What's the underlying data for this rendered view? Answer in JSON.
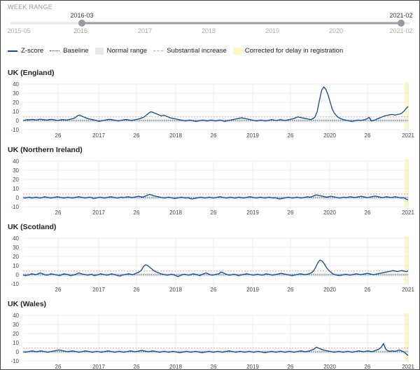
{
  "week_range": {
    "label": "WEEK RANGE",
    "min_label": "2015-05",
    "max_label": "2021-02",
    "start_value": "2016-03",
    "end_value": "2021-02",
    "start_tick": "2016"
  },
  "legend": {
    "zscore": "Z-score",
    "baseline": "Baseline",
    "normal_range": "Normal range",
    "substantial_increase": "Substantial increase",
    "corrected": "Corrected for delay in registration"
  },
  "colors": {
    "zscore": "#0c4a8c",
    "normal_range": "#e4e9ee",
    "substantial": "#e89a9a",
    "corrected": "#fff6c6",
    "slider": "#9a9aa0"
  },
  "chart_data": [
    {
      "type": "line",
      "title": "UK (England)",
      "ylim": [
        -10,
        40
      ],
      "yticks": [
        -10,
        0,
        10,
        20,
        30,
        40
      ],
      "x_tick_labels": [
        "26",
        "2017",
        "26",
        "2018",
        "26",
        "2019",
        "26",
        "2020",
        "26",
        "2021"
      ],
      "baseline": 0,
      "normal_range": [
        -2,
        2
      ],
      "substantial_increase": 4,
      "series": [
        {
          "values": [
            0,
            0.5,
            1,
            0.8,
            1.2,
            1,
            0.5,
            1,
            1.5,
            1,
            0.8,
            0.5,
            1,
            1.2,
            1,
            0.5,
            0,
            0.5,
            1,
            0.8,
            0.5,
            1,
            1.5,
            2,
            3,
            5,
            6,
            5,
            4,
            3,
            2,
            1.5,
            1,
            0.5,
            0,
            -1,
            -0.5,
            0,
            0.5,
            1,
            1.2,
            1,
            0.5,
            0,
            -0.5,
            0,
            0.5,
            1,
            1,
            0.5,
            0,
            0.5,
            1,
            1.5,
            2,
            3,
            4,
            6,
            8,
            9.5,
            9,
            8,
            7,
            6,
            5,
            6,
            5,
            4,
            3,
            2.5,
            2,
            1.5,
            1,
            0.5,
            0,
            -0.5,
            0,
            0.5,
            0,
            -0.5,
            -1,
            -0.5,
            0,
            0.5,
            0,
            -0.5,
            0,
            0.5,
            0,
            -0.5,
            0,
            0.5,
            0,
            -1,
            -0.5,
            0,
            0.5,
            1,
            1.5,
            2,
            2.5,
            3,
            2.5,
            2,
            1.5,
            1,
            0.5,
            0,
            -0.5,
            0,
            0.5,
            0,
            -0.5,
            0,
            0.5,
            1,
            0.5,
            0,
            0.5,
            1,
            0.5,
            0,
            0.5,
            1,
            1.5,
            2,
            3,
            4,
            3.5,
            3,
            2.5,
            2,
            1.5,
            1,
            2,
            4,
            10,
            22,
            33,
            37,
            34,
            28,
            20,
            12,
            8,
            5,
            3,
            2,
            1,
            0.5,
            0,
            -0.5,
            -1,
            -0.5,
            0,
            0.5,
            0,
            0.5,
            1,
            2,
            3.5,
            -0.5,
            0,
            1,
            2,
            3,
            4,
            5,
            5.5,
            6,
            6.5,
            6.5,
            6,
            6.5,
            7,
            8,
            10,
            13,
            15.5
          ]
        }
      ]
    },
    {
      "type": "line",
      "title": "UK (Northern Ireland)",
      "ylim": [
        -10,
        40
      ],
      "yticks": [
        -10,
        0,
        10,
        20,
        30,
        40
      ],
      "x_tick_labels": [
        "26",
        "2017",
        "26",
        "2018",
        "26",
        "2019",
        "26",
        "2020",
        "26",
        "2021"
      ],
      "baseline": 0,
      "normal_range": [
        -2,
        2
      ],
      "substantial_increase": 4,
      "series": [
        {
          "values": [
            0,
            -0.5,
            0,
            0.5,
            -0.5,
            0,
            0.5,
            0,
            -0.5,
            0,
            1,
            0.5,
            0,
            -0.5,
            0,
            0.5,
            1,
            0.5,
            0,
            -0.5,
            0,
            0.5,
            0,
            -0.5,
            0,
            0.5,
            1,
            0.5,
            0,
            -0.5,
            0,
            0.5,
            0,
            -1,
            -0.5,
            0,
            0.5,
            0,
            -0.5,
            0,
            0.5,
            1,
            0.5,
            0,
            -0.5,
            0,
            0.5,
            0,
            0.5,
            1,
            0.5,
            0,
            0.5,
            1,
            1.5,
            1,
            0.5,
            1.5,
            2.5,
            3.5,
            3,
            2,
            1.5,
            1,
            0.5,
            0,
            -0.5,
            0,
            0.5,
            0,
            -0.5,
            -1,
            -0.5,
            0,
            0.5,
            0,
            -0.5,
            0,
            -1,
            -1.5,
            -1,
            -0.5,
            0,
            0.5,
            0,
            -0.5,
            0,
            0.5,
            0,
            -0.5,
            0,
            0.5,
            1,
            0.5,
            0,
            -0.5,
            0,
            0.5,
            0,
            -0.5,
            0,
            0.5,
            0,
            -0.5,
            0,
            0.5,
            1,
            0.5,
            0,
            -0.5,
            0,
            0.5,
            0,
            -0.5,
            0,
            0.5,
            0,
            -0.5,
            0,
            -1,
            -1.5,
            -1,
            -0.5,
            0,
            0.5,
            0,
            -0.5,
            0,
            0.5,
            0,
            -0.5,
            0,
            0.5,
            1,
            0.5,
            1,
            2,
            3,
            2.5,
            2,
            1.5,
            1,
            0.5,
            1,
            1.5,
            1,
            0.5,
            0,
            -0.5,
            0,
            0.5,
            0,
            0.5,
            1,
            0.5,
            0,
            0.5,
            1,
            1.5,
            1,
            0.5,
            0,
            0.5,
            1,
            1.5,
            1.5,
            1,
            0.5,
            0,
            0.5,
            1,
            0.5,
            0,
            0.5,
            1,
            0.5,
            0,
            -0.5,
            0,
            -1.5,
            -2.5
          ]
        }
      ]
    },
    {
      "type": "line",
      "title": "UK (Scotland)",
      "ylim": [
        -10,
        40
      ],
      "yticks": [
        -10,
        0,
        10,
        20,
        30,
        40
      ],
      "x_tick_labels": [
        "26",
        "2017",
        "26",
        "2018",
        "26",
        "2019",
        "26",
        "2020",
        "26",
        "2021"
      ],
      "baseline": 0,
      "normal_range": [
        -2,
        2
      ],
      "substantial_increase": 4,
      "series": [
        {
          "values": [
            0,
            -1,
            -0.5,
            0,
            1,
            0.5,
            0,
            1,
            2,
            1,
            0,
            -0.5,
            0,
            1,
            0.5,
            0,
            -0.5,
            -1,
            0,
            1,
            0.5,
            0,
            -1,
            -0.5,
            0,
            1,
            2,
            1,
            0.5,
            0,
            -0.5,
            0,
            0.5,
            -1,
            -0.5,
            0,
            1,
            0.5,
            0,
            -0.5,
            0,
            1,
            0.5,
            0,
            -1,
            -1.5,
            -0.5,
            0,
            0.5,
            1,
            0.5,
            0,
            1,
            2,
            3,
            5,
            9,
            11,
            10,
            8,
            6,
            4,
            3,
            2,
            1,
            0.5,
            0,
            -0.5,
            0,
            0.5,
            0,
            -1,
            -2,
            -1,
            0,
            0.5,
            0,
            -0.5,
            0,
            1,
            0.5,
            0,
            -1,
            0,
            1,
            2,
            1,
            0,
            -0.5,
            0,
            0.5,
            1,
            3,
            2,
            1,
            0,
            -0.5,
            0,
            0.5,
            0,
            -1,
            -0.5,
            0,
            0.5,
            1,
            0.5,
            0,
            -0.5,
            0,
            0.5,
            0,
            -0.5,
            0,
            1,
            0.5,
            0,
            -0.5,
            0,
            0.5,
            1,
            1.5,
            1,
            0.5,
            0,
            -0.5,
            -1,
            -0.5,
            0,
            0.5,
            1,
            0.5,
            0,
            0.5,
            1,
            2,
            4,
            8,
            13,
            16,
            15,
            12,
            8,
            5,
            3,
            1,
            0,
            -0.5,
            -1,
            -0.5,
            0,
            0.5,
            0,
            -0.5,
            0,
            0.5,
            1,
            0.5,
            0,
            0.5,
            1,
            1.5,
            1,
            0.5,
            0,
            0.5,
            1,
            1.5,
            2,
            2.5,
            3,
            3.5,
            4,
            4.5,
            4,
            3.5,
            4,
            4.5,
            4,
            3.5,
            4
          ]
        }
      ]
    },
    {
      "type": "line",
      "title": "UK (Wales)",
      "ylim": [
        -10,
        40
      ],
      "yticks": [
        -10,
        0,
        10,
        20,
        30,
        40
      ],
      "x_tick_labels": [
        "26",
        "2017",
        "26",
        "2018",
        "26",
        "2019",
        "26",
        "2020",
        "26",
        "2021"
      ],
      "baseline": 0,
      "normal_range": [
        -2,
        2
      ],
      "substantial_increase": 4,
      "series": [
        {
          "values": [
            0,
            -0.5,
            0,
            0.5,
            1,
            0.5,
            0,
            0.5,
            1,
            0.5,
            0,
            -0.5,
            0,
            0.5,
            1,
            1.5,
            2,
            1.5,
            1,
            0.5,
            0,
            0.5,
            1,
            0.5,
            0,
            -0.5,
            0,
            0.5,
            1,
            0.5,
            0,
            -0.5,
            0,
            0.5,
            0,
            -0.5,
            0,
            0.5,
            1,
            0.5,
            0,
            -0.5,
            0,
            0.5,
            0,
            -0.5,
            0,
            0.5,
            1,
            0.5,
            0,
            0.5,
            1,
            1.5,
            1,
            0.5,
            0,
            0.5,
            1,
            0.5,
            0,
            -0.5,
            0,
            0.5,
            0,
            -0.5,
            0,
            0.5,
            0,
            -0.5,
            -1,
            -0.5,
            0,
            0.5,
            0,
            -0.5,
            0,
            0.5,
            0,
            -0.5,
            -1,
            -0.5,
            0,
            0.5,
            0,
            -0.5,
            0,
            0.5,
            0,
            -0.5,
            0,
            0.5,
            1,
            0.5,
            0,
            -0.5,
            0,
            0.5,
            0,
            -0.5,
            0,
            0.5,
            0,
            -0.5,
            0,
            0.5,
            0,
            -0.5,
            -1,
            -0.5,
            0,
            0.5,
            0,
            -0.5,
            0,
            0.5,
            0,
            -0.5,
            0,
            0.5,
            0,
            -0.5,
            0,
            0.5,
            1,
            0.5,
            0,
            0.5,
            1,
            2,
            3,
            5,
            4,
            3,
            2,
            1.5,
            1,
            0.5,
            0,
            -0.5,
            0,
            0.5,
            0,
            -0.5,
            0,
            0.5,
            0,
            -0.5,
            0,
            0.5,
            1,
            0.5,
            0,
            0.5,
            1,
            0.5,
            0,
            1,
            2,
            3,
            5,
            9,
            3,
            1,
            0.5,
            1,
            0.5,
            1,
            2,
            1,
            0,
            -2,
            -4
          ]
        }
      ]
    }
  ]
}
